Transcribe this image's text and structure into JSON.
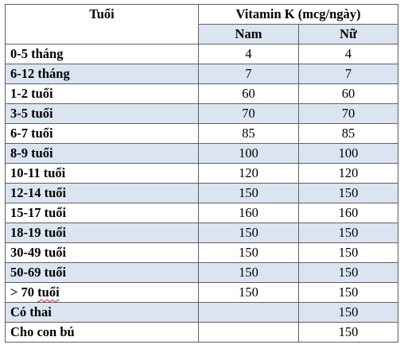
{
  "table": {
    "header": {
      "age_label": "Tuổi",
      "group_label": "Vitamin K (mcg/ngày)",
      "male_label": "Nam",
      "female_label": "Nữ"
    },
    "rows": [
      {
        "age": "0-5 tháng",
        "male": "4",
        "female": "4"
      },
      {
        "age": "6-12 tháng",
        "male": "7",
        "female": "7"
      },
      {
        "age": "1-2 tuổi",
        "male": "60",
        "female": "60"
      },
      {
        "age": "3-5 tuổi",
        "male": "70",
        "female": "70"
      },
      {
        "age": "6-7 tuổi",
        "male": "85",
        "female": "85"
      },
      {
        "age": "8-9 tuổi",
        "male": "100",
        "female": "100"
      },
      {
        "age": "10-11 tuổi",
        "male": "120",
        "female": "120"
      },
      {
        "age": "12-14 tuổi",
        "male": "150",
        "female": "150"
      },
      {
        "age": "15-17 tuổi",
        "male": "160",
        "female": "160"
      },
      {
        "age": "18-19 tuổi",
        "male": "150",
        "female": "150"
      },
      {
        "age": "30-49 tuổi",
        "male": "150",
        "female": "150"
      },
      {
        "age": "50-69 tuổi",
        "male": "150",
        "female": "150"
      },
      {
        "age_prefix": "> 70 ",
        "age_suffix": "tuổi",
        "male": "150",
        "female": "150"
      },
      {
        "age": "Có thai",
        "male": "",
        "female": "150"
      },
      {
        "age": "Cho con bú",
        "male": "",
        "female": "150"
      }
    ]
  },
  "colors": {
    "shaded_row": "#dbe5f1",
    "border": "#5f5f5f",
    "spellcheck_underline": "#e02020"
  }
}
